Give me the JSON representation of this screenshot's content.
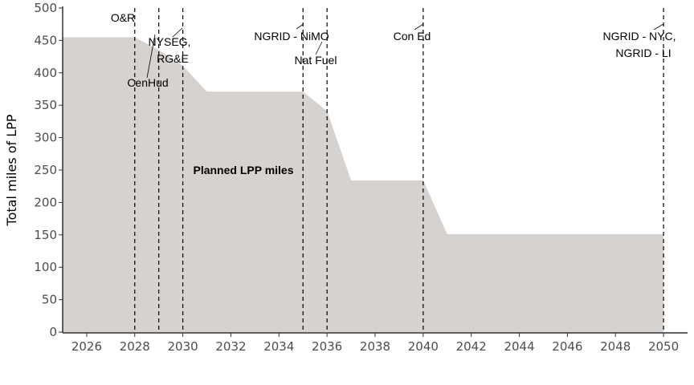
{
  "chart_data": {
    "type": "area",
    "title": "",
    "xlabel": "",
    "ylabel": "Total miles of LPP",
    "xlim": [
      2025,
      2051
    ],
    "ylim": [
      0,
      500
    ],
    "x_ticks": [
      2026,
      2028,
      2030,
      2032,
      2034,
      2036,
      2038,
      2040,
      2042,
      2044,
      2046,
      2048,
      2050
    ],
    "y_ticks": [
      0,
      50,
      100,
      150,
      200,
      250,
      300,
      350,
      400,
      450,
      500
    ],
    "grid": false,
    "legend": "none",
    "series": [
      {
        "name": "Planned LPP miles",
        "color": "#d6d2cf",
        "x": [
          2025,
          2028,
          2029,
          2030,
          2031,
          2035,
          2036,
          2037,
          2040,
          2041,
          2050
        ],
        "y": [
          455,
          455,
          435,
          411,
          371,
          371,
          341,
          234,
          234,
          151,
          151
        ]
      }
    ],
    "vlines": [
      {
        "x": 2028,
        "label": "O&R"
      },
      {
        "x": 2029,
        "label": "CenHud"
      },
      {
        "x": 2030,
        "label": "NYSEG, RG&E"
      },
      {
        "x": 2035,
        "label": "NGRID - NiMO"
      },
      {
        "x": 2036,
        "label": "Nat Fuel"
      },
      {
        "x": 2040,
        "label": "Con Ed"
      },
      {
        "x": 2050,
        "label": "NGRID - NYC, NGRID - LI"
      }
    ],
    "annotations": {
      "area_label": "Planned LPP miles",
      "o_r": "O&R",
      "cenhud": "CenHud",
      "nyseg_line1": "NYSEG,",
      "nyseg_line2": "RG&E",
      "ngrid_nimo": "NGRID - NiMO",
      "nat_fuel": "Nat Fuel",
      "con_ed": "Con Ed",
      "ngrid_nyc_line1": "NGRID - NYC,",
      "ngrid_nyc_line2": "NGRID - LI"
    }
  }
}
